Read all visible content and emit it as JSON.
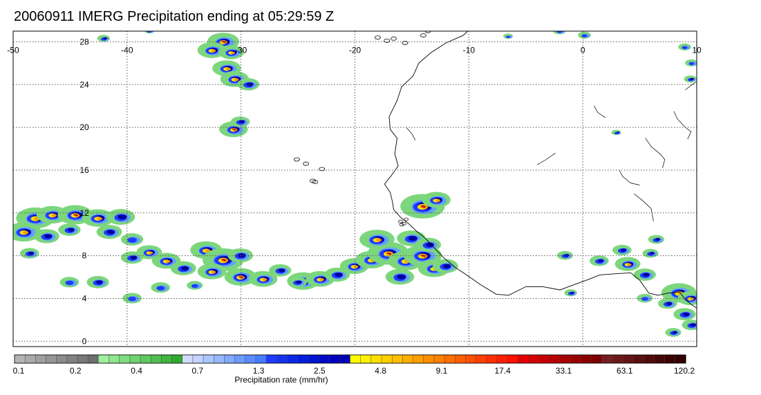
{
  "title": "20060911 IMERG Precipitation ending at 05:29:59 Z",
  "map": {
    "lon_range": [
      -50,
      10
    ],
    "lat_range": [
      -0.5,
      29
    ],
    "lon_ticks": [
      "-50",
      "-40",
      "-30",
      "-20",
      "-10",
      "0",
      "10"
    ],
    "lon_values": [
      -50,
      -40,
      -30,
      -20,
      -10,
      0,
      10
    ],
    "lat_ticks": [
      "28",
      "24",
      "20",
      "16",
      "12",
      "8",
      "4",
      "0"
    ],
    "lat_values": [
      28,
      24,
      20,
      16,
      12,
      8,
      4,
      0
    ],
    "grid": "dotted"
  },
  "colorbar": {
    "title": "Precipitation rate (mm/hr)",
    "labels": [
      "0.1",
      "0.2",
      "0.4",
      "0.7",
      "1.3",
      "2.5",
      "4.8",
      "9.1",
      "17.4",
      "33.1",
      "63.1",
      "120.2"
    ],
    "colors": [
      "#b4b4b4",
      "#aaaaaa",
      "#a0a0a0",
      "#969696",
      "#8c8c8c",
      "#828282",
      "#787878",
      "#6e6e6e",
      "#a0f0a0",
      "#90e690",
      "#80dc80",
      "#70d270",
      "#60c860",
      "#50be50",
      "#40b440",
      "#30aa30",
      "#d2dcff",
      "#c3d2ff",
      "#aac8ff",
      "#96b9ff",
      "#82aaff",
      "#6e9bff",
      "#5a8cff",
      "#467dff",
      "#1e3cff",
      "#1432f0",
      "#0a28e6",
      "#001edc",
      "#0014d2",
      "#000ac8",
      "#0000be",
      "#0000b4",
      "#ffff00",
      "#ffef00",
      "#ffdf00",
      "#ffcf00",
      "#ffbf00",
      "#ffaf00",
      "#ff9f00",
      "#ff8f00",
      "#ff7f00",
      "#ff6f00",
      "#ff5f00",
      "#ff4f00",
      "#ff3f00",
      "#ff2f00",
      "#ff1f00",
      "#ff0f00",
      "#e60000",
      "#d70000",
      "#c80000",
      "#b90000",
      "#aa0000",
      "#9b0000",
      "#8c0000",
      "#7d0000",
      "#781e1e",
      "#6e1919",
      "#641414",
      "#5a0f0f",
      "#500a0a",
      "#460505",
      "#3c0000",
      "#320000"
    ]
  },
  "precip_colors": {
    "green": "#7cd67c",
    "light_blue": "#64a0ff",
    "blue": "#1e3cff",
    "dark_blue": "#0000a0",
    "yellow": "#ffe600",
    "orange": "#ff9a00",
    "red": "#e62800",
    "dark_red": "#8c0000"
  },
  "coast_color": "#000000"
}
